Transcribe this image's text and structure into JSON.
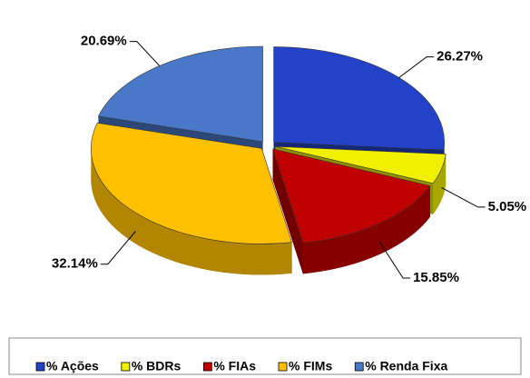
{
  "chart_data": {
    "type": "pie",
    "categories": [
      "% Ações",
      "% BDRs",
      "% FIAs",
      "% FIMs",
      "% Renda Fixa"
    ],
    "values": [
      26.27,
      5.05,
      15.85,
      32.14,
      20.69
    ],
    "value_labels": [
      "26.27%",
      "5.05%",
      "15.85%",
      "32.14%",
      "20.69%"
    ],
    "colors": [
      "#2342c8",
      "#f0f000",
      "#c00000",
      "#ffc000",
      "#4a78c8"
    ],
    "legend": "bottom"
  }
}
